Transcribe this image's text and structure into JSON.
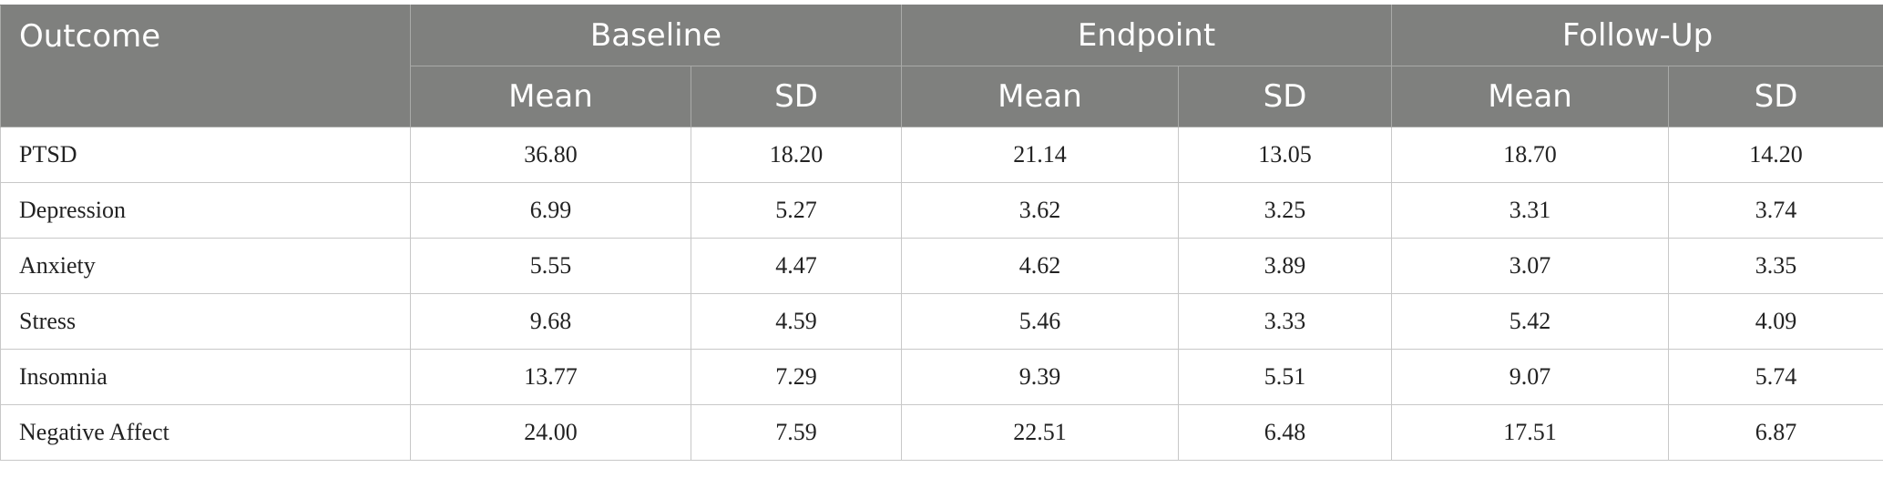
{
  "table": {
    "header": {
      "outcome": "Outcome",
      "groups": [
        "Baseline",
        "Endpoint",
        "Follow-Up"
      ],
      "mean": "Mean",
      "sd": "SD"
    },
    "rows": [
      {
        "outcome": "PTSD",
        "values": [
          "36.80",
          "18.20",
          "21.14",
          "13.05",
          "18.70",
          "14.20"
        ]
      },
      {
        "outcome": "Depression",
        "values": [
          "6.99",
          "5.27",
          "3.62",
          "3.25",
          "3.31",
          "3.74"
        ]
      },
      {
        "outcome": "Anxiety",
        "values": [
          "5.55",
          "4.47",
          "4.62",
          "3.89",
          "3.07",
          "3.35"
        ]
      },
      {
        "outcome": "Stress",
        "values": [
          "9.68",
          "4.59",
          "5.46",
          "3.33",
          "5.42",
          "4.09"
        ]
      },
      {
        "outcome": "Insomnia",
        "values": [
          "13.77",
          "7.29",
          "9.39",
          "5.51",
          "9.07",
          "5.74"
        ]
      },
      {
        "outcome": "Negative Affect",
        "values": [
          "24.00",
          "7.59",
          "22.51",
          "6.48",
          "17.51",
          "6.87"
        ]
      }
    ]
  }
}
